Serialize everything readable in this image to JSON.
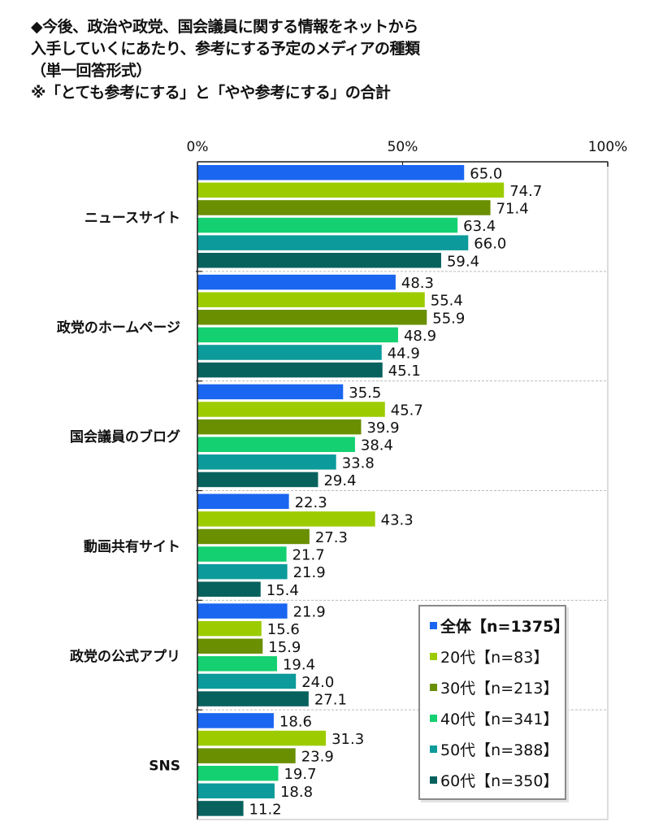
{
  "title": {
    "lines": [
      "◆今後、政治や政党、国会議員に関する情報をネットから",
      "入手していくにあたり、参考にする予定のメディアの種類",
      "（単一回答形式）",
      "※「とても参考にする」と「やや参考にする」の合計"
    ]
  },
  "chart_data": {
    "type": "bar",
    "orientation": "horizontal",
    "title": "今後、政治や政党、国会議員に関する情報をネットから入手していくにあたり、参考にする予定のメディアの種類（単一回答形式）※「とても参考にする」と「やや参考にする」の合計",
    "xlabel": "",
    "ylabel": "",
    "xlim": [
      0,
      100
    ],
    "x_ticks": [
      "0%",
      "50%",
      "100%"
    ],
    "x_tick_values": [
      0,
      50,
      100
    ],
    "grid": false,
    "legend_position": "bottom-right",
    "categories": [
      "ニュースサイト",
      "政党のホームページ",
      "国会議員のブログ",
      "動画共有サイト",
      "政党の公式アプリ",
      "SNS"
    ],
    "series": [
      {
        "name": "全体【n=1375】",
        "color": "#1a66f0",
        "values": [
          65.0,
          48.3,
          35.5,
          22.3,
          21.9,
          18.6
        ]
      },
      {
        "name": "20代【n=83】",
        "color": "#9ccc00",
        "values": [
          74.7,
          55.4,
          45.7,
          43.3,
          15.6,
          31.3
        ]
      },
      {
        "name": "30代【n=213】",
        "color": "#6a8f00",
        "values": [
          71.4,
          55.9,
          39.9,
          27.3,
          15.9,
          23.9
        ]
      },
      {
        "name": "40代【n=341】",
        "color": "#14d070",
        "values": [
          63.4,
          48.9,
          38.4,
          21.7,
          19.4,
          19.7
        ]
      },
      {
        "name": "50代【n=388】",
        "color": "#0c9a9a",
        "values": [
          66.0,
          44.9,
          33.8,
          21.9,
          24.0,
          18.8
        ]
      },
      {
        "name": "60代【n=350】",
        "color": "#07625e",
        "values": [
          59.4,
          45.1,
          29.4,
          15.4,
          27.1,
          11.2
        ]
      }
    ]
  }
}
